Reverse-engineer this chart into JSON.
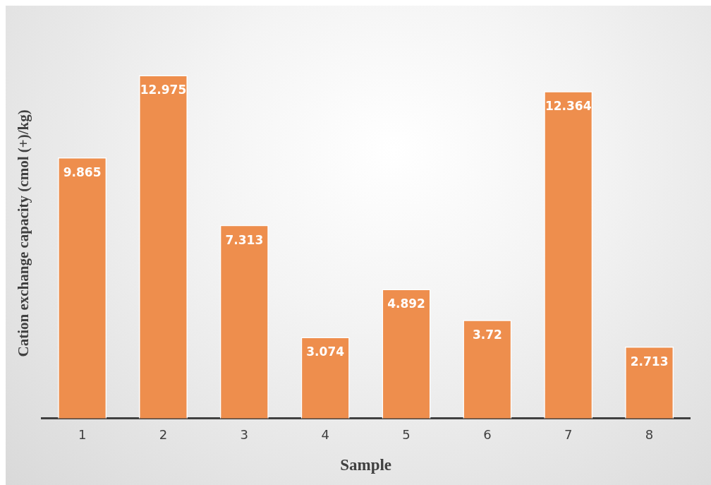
{
  "chart_data": {
    "type": "bar",
    "xlabel": "Sample",
    "ylabel": "Cation exchange capacity (cmol (+)/kg)",
    "categories": [
      "1",
      "2",
      "3",
      "4",
      "5",
      "6",
      "7",
      "8"
    ],
    "values": [
      9.865,
      12.975,
      7.313,
      3.074,
      4.892,
      3.72,
      12.364,
      2.713
    ],
    "color": "#ee8e4d",
    "data_labels": true,
    "grid": false,
    "legend": false
  }
}
